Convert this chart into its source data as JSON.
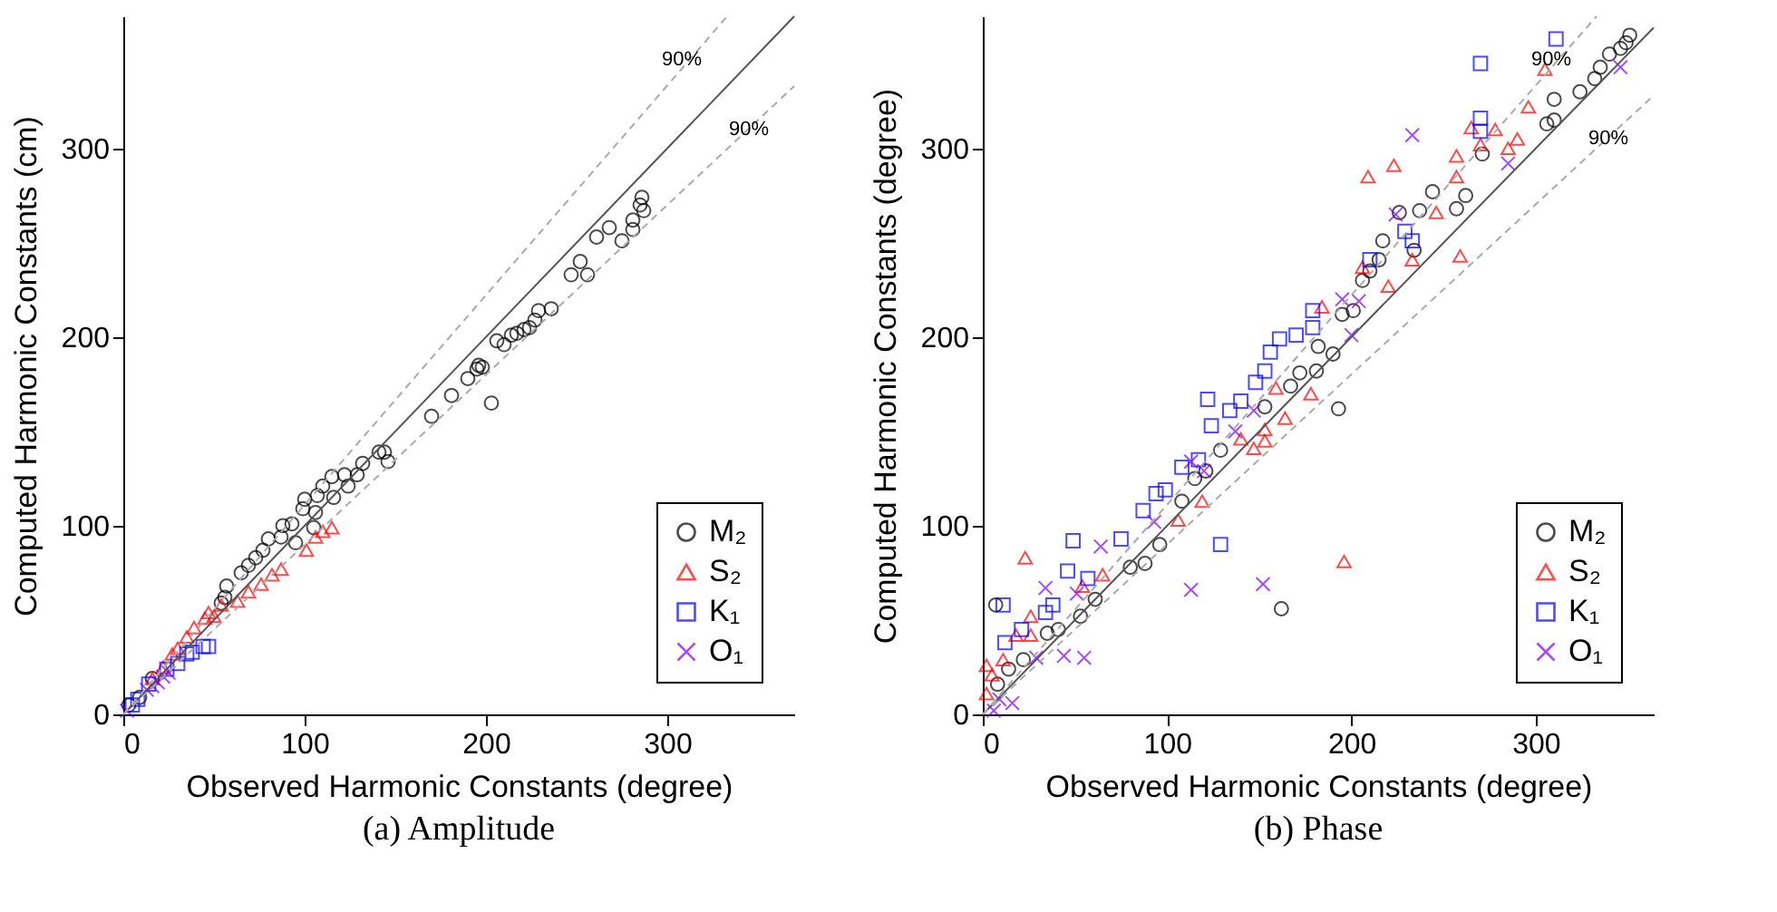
{
  "chart_data": [
    {
      "type": "scatter",
      "title": "(a) Amplitude",
      "xlabel": "Observed Harmonic Constants (degree)",
      "ylabel": "Computed Harmonic Constants (cm)",
      "xlim": [
        0,
        370
      ],
      "ylim": [
        0,
        370
      ],
      "xticks": [
        0,
        100,
        200,
        300
      ],
      "yticks": [
        0,
        100,
        200,
        300
      ],
      "grid": false,
      "legend": "bottom right",
      "series": [
        {
          "name": "M₂",
          "color": "#000000",
          "marker": "circle",
          "x": [
            286,
            285,
            287,
            281,
            281,
            275,
            268,
            261,
            256,
            252,
            247,
            236,
            229,
            227,
            224,
            221,
            217,
            214,
            210,
            206,
            203,
            198,
            196,
            195,
            190,
            181,
            170,
            146,
            144,
            141,
            132,
            129,
            124,
            122,
            115,
            116,
            110,
            107,
            106,
            105,
            100,
            99,
            95,
            93,
            88,
            87,
            80,
            77,
            73,
            69,
            65,
            57,
            56,
            54,
            16,
            3,
            9
          ],
          "values": [
            274,
            270,
            267,
            262,
            257,
            251,
            258,
            253,
            233,
            240,
            233,
            215,
            214,
            209,
            205,
            204,
            202,
            201,
            196,
            198,
            165,
            184,
            185,
            183,
            178,
            169,
            158,
            134,
            139,
            139,
            133,
            127,
            121,
            127,
            126,
            115,
            121,
            116,
            107,
            99,
            114,
            109,
            91,
            101,
            100,
            94,
            93,
            87,
            83,
            79,
            75,
            68,
            62,
            59,
            19,
            5,
            9
          ]
        },
        {
          "name": "S₂",
          "color": "#ff0000",
          "marker": "triangle",
          "x": [
            115,
            110,
            106,
            101,
            87,
            82,
            76,
            69,
            63,
            50,
            45,
            39,
            35,
            30,
            27,
            22,
            16,
            54,
            47
          ],
          "values": [
            99,
            97,
            94,
            87,
            77,
            74,
            69,
            65,
            60,
            52,
            51,
            46,
            41,
            35,
            32,
            25,
            19,
            58,
            54
          ]
        },
        {
          "name": "K₁",
          "color": "#0000ff",
          "marker": "square",
          "x": [
            47,
            44,
            38,
            35,
            30,
            24,
            14,
            8,
            5
          ],
          "values": [
            36,
            36,
            33,
            32,
            27,
            24,
            16,
            8,
            5
          ]
        },
        {
          "name": "O₁",
          "color": "#7f00ff",
          "marker": "cross",
          "x": [
            25,
            19,
            13,
            6,
            2,
            22,
            16
          ],
          "values": [
            22,
            17,
            13,
            null,
            2,
            20,
            15
          ]
        },
        {
          "type": "line",
          "color": "#555555",
          "line_style": "solid",
          "x": [
            0,
            370
          ],
          "values": [
            0,
            370
          ]
        },
        {
          "type": "line",
          "color": "#aaaaaa",
          "line_style": "dashed",
          "x": [
            0,
            333
          ],
          "values": [
            0,
            370
          ]
        },
        {
          "type": "line",
          "color": "#aaaaaa",
          "line_style": "dashed",
          "x": [
            0,
            370
          ],
          "values": [
            0,
            333
          ]
        }
      ],
      "annotations": [
        "90%",
        "90%"
      ]
    },
    {
      "type": "scatter",
      "title": "(b) Phase",
      "xlabel": "Observed Harmonic Constants (degree)",
      "ylabel": "Computed Harmonic Constants (degree)",
      "xlim": [
        0,
        364
      ],
      "ylim": [
        0,
        370
      ],
      "xticks": [
        0,
        100,
        200,
        300
      ],
      "yticks": [
        0,
        100,
        200,
        300
      ],
      "grid": false,
      "legend": "bottom right",
      "series": [
        {
          "name": "M₂",
          "color": "#000000",
          "marker": "circle",
          "x": [
            351,
            349,
            346,
            340,
            335,
            332,
            324,
            310,
            310,
            306,
            271,
            262,
            257,
            244,
            237,
            234,
            226,
            217,
            215,
            210,
            206,
            201,
            195,
            190,
            182,
            181,
            172,
            167,
            193,
            153,
            129,
            121,
            115,
            108,
            96,
            88,
            80,
            61,
            53,
            41,
            35,
            22,
            14,
            8,
            162,
            7
          ],
          "values": [
            360,
            356,
            353,
            350,
            343,
            337,
            330,
            326,
            315,
            313,
            297,
            275,
            268,
            277,
            267,
            246,
            266,
            251,
            241,
            235,
            230,
            214,
            212,
            191,
            195,
            182,
            181,
            174,
            162,
            163,
            140,
            129,
            125,
            113,
            90,
            80,
            78,
            61,
            52,
            45,
            43,
            29,
            24,
            16,
            56,
            58
          ]
        },
        {
          "name": "S₂",
          "color": "#ff0000",
          "marker": "triangle",
          "x": [
            305,
            296,
            278,
            265,
            270,
            290,
            285,
            257,
            257,
            246,
            259,
            223,
            209,
            233,
            220,
            206,
            184,
            178,
            159,
            164,
            153,
            153,
            147,
            140,
            119,
            106,
            196,
            23,
            54,
            65,
            26,
            18,
            11,
            5,
            2,
            2,
            26
          ],
          "values": [
            342,
            322,
            310,
            311,
            302,
            305,
            300,
            296,
            285,
            266,
            243,
            291,
            285,
            241,
            227,
            237,
            216,
            170,
            173,
            157,
            151,
            145,
            141,
            146,
            113,
            103,
            81,
            83,
            68,
            74,
            52,
            42,
            29,
            21,
            11,
            26,
            42
          ]
        },
        {
          "name": "K₁",
          "color": "#0000ff",
          "marker": "square",
          "x": [
            311,
            270,
            270,
            270,
            233,
            229,
            210,
            179,
            179,
            170,
            161,
            156,
            153,
            148,
            140,
            134,
            122,
            124,
            117,
            108,
            99,
            94,
            87,
            129,
            75,
            49,
            46,
            57,
            38,
            34,
            21,
            12,
            11
          ],
          "values": [
            358,
            345,
            316,
            309,
            251,
            256,
            241,
            214,
            205,
            201,
            199,
            192,
            182,
            176,
            166,
            161,
            167,
            153,
            135,
            131,
            119,
            117,
            108,
            90,
            93,
            92,
            76,
            72,
            58,
            54,
            45,
            38,
            58
          ]
        },
        {
          "name": "O₁",
          "color": "#7f00ff",
          "marker": "cross",
          "x": [
            233,
            285,
            224,
            195,
            204,
            200,
            147,
            137,
            120,
            113,
            93,
            113,
            152,
            64,
            51,
            34,
            44,
            55,
            29,
            16,
            6,
            9,
            346
          ],
          "values": [
            307,
            292,
            265,
            220,
            219,
            201,
            161,
            150,
            129,
            134,
            102,
            66,
            69,
            89,
            64,
            67,
            31,
            30,
            30,
            6,
            2,
            8,
            343
          ]
        },
        {
          "type": "line",
          "color": "#555555",
          "line_style": "solid",
          "x": [
            0,
            364
          ],
          "values": [
            0,
            364
          ]
        },
        {
          "type": "line",
          "color": "#aaaaaa",
          "line_style": "dashed",
          "x": [
            0,
            333
          ],
          "values": [
            0,
            370
          ]
        },
        {
          "type": "line",
          "color": "#aaaaaa",
          "line_style": "dashed",
          "x": [
            0,
            364
          ],
          "values": [
            0,
            328
          ]
        }
      ],
      "annotations": [
        "90%",
        "90%"
      ]
    }
  ]
}
